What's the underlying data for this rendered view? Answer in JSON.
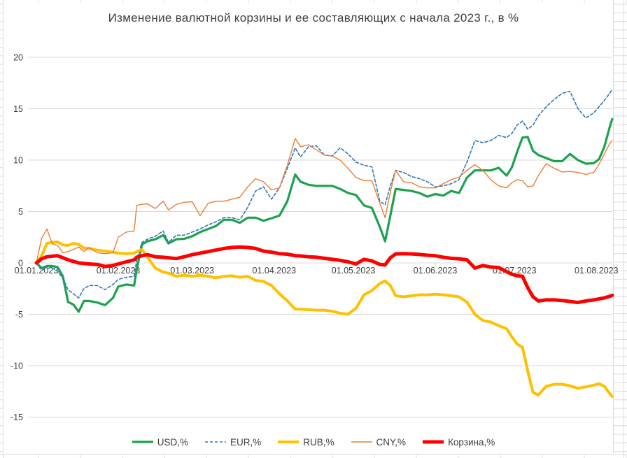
{
  "title": "Изменение валютной корзины и ее составляющих с начала 2023 г., в %",
  "colors": {
    "background": "#ffffff",
    "grid": "#d9d9d9",
    "sheet_line": "#dcdcdc",
    "axis_text": "#404040"
  },
  "chart_data": {
    "type": "line",
    "title": "Изменение валютной корзины и ее составляющих с начала 2023 г., в %",
    "xlabel": "",
    "ylabel": "",
    "grid": true,
    "legend_position": "bottom",
    "x_axis": {
      "labels": [
        "01.01.2023",
        "01.02.2023",
        "01.03.2023",
        "01.04.2023",
        "01.05.2023",
        "01.06.2023",
        "01.07.2023",
        "01.08.2023"
      ],
      "label_days": [
        0,
        31,
        59,
        90,
        120,
        151,
        181,
        212
      ]
    },
    "y_axis": {
      "ticks": [
        20,
        15,
        10,
        5,
        0,
        -5,
        -10,
        -15
      ],
      "ylim": [
        -15,
        20
      ]
    },
    "days": [
      0,
      2,
      4,
      6,
      8,
      10,
      12,
      14,
      16,
      18,
      20,
      23,
      26,
      29,
      31,
      34,
      37,
      38,
      40,
      42,
      45,
      48,
      50,
      53,
      56,
      59,
      62,
      65,
      68,
      71,
      74,
      77,
      80,
      83,
      86,
      89,
      92,
      95,
      98,
      100,
      103,
      106,
      109,
      112,
      115,
      118,
      121,
      124,
      127,
      130,
      132,
      134,
      136,
      139,
      142,
      145,
      148,
      151,
      154,
      157,
      160,
      163,
      166,
      169,
      172,
      175,
      178,
      180,
      182,
      184,
      186,
      188,
      190,
      193,
      196,
      199,
      202,
      205,
      208,
      211,
      213,
      215,
      217,
      218
    ],
    "series": [
      {
        "id": "usd",
        "name": "USD,%",
        "color": "#1CA24F",
        "width": 3.2,
        "dash": null,
        "values": [
          0,
          -0.5,
          -0.3,
          -0.3,
          -0.4,
          -1.3,
          -3.8,
          -4.05,
          -4.75,
          -3.7,
          -3.7,
          -3.85,
          -4.1,
          -3.4,
          -2.3,
          -2.1,
          -2.2,
          -0.6,
          1.8,
          2.1,
          2.3,
          2.7,
          1.9,
          2.3,
          2.35,
          2.6,
          3.0,
          3.3,
          3.6,
          4.2,
          4.2,
          3.9,
          4.4,
          4.4,
          4.1,
          4.35,
          4.6,
          6.0,
          8.6,
          7.9,
          7.6,
          7.5,
          7.5,
          7.5,
          7.2,
          6.8,
          6.6,
          5.6,
          5.35,
          3.5,
          2.1,
          4.6,
          7.2,
          7.1,
          7.0,
          6.8,
          6.45,
          6.7,
          6.55,
          7.0,
          6.8,
          8.3,
          9.0,
          9.0,
          9.0,
          9.25,
          8.5,
          9.3,
          10.8,
          12.2,
          12.25,
          10.9,
          10.5,
          10.2,
          9.9,
          9.9,
          10.6,
          10.0,
          9.65,
          9.7,
          10.1,
          11.3,
          13.2,
          14.0
        ]
      },
      {
        "id": "eur",
        "name": "EUR,%",
        "color": "#2E75B6",
        "width": 1.6,
        "dash": "4 3",
        "values": [
          0,
          -0.7,
          -0.5,
          -0.5,
          -0.8,
          -1.5,
          -2.6,
          -3.0,
          -3.4,
          -2.5,
          -2.2,
          -2.2,
          -2.6,
          -2.1,
          -1.6,
          -1.4,
          -1.3,
          0.3,
          2.0,
          2.3,
          2.6,
          3.1,
          2.0,
          2.7,
          2.7,
          3.0,
          3.3,
          3.7,
          4.0,
          4.4,
          4.4,
          4.2,
          5.4,
          7.0,
          7.4,
          6.2,
          7.3,
          9.2,
          11.2,
          10.3,
          11.3,
          11.4,
          10.5,
          10.4,
          11.2,
          10.6,
          9.8,
          9.5,
          9.35,
          6.0,
          5.65,
          7.5,
          9.0,
          8.8,
          8.4,
          8.2,
          7.9,
          7.4,
          7.5,
          7.7,
          8.1,
          9.8,
          11.9,
          11.7,
          11.9,
          12.4,
          12.2,
          12.6,
          13.4,
          13.8,
          13.0,
          13.4,
          14.3,
          15.2,
          15.9,
          16.5,
          16.7,
          15.0,
          14.1,
          14.6,
          15.2,
          15.8,
          16.5,
          16.9
        ]
      },
      {
        "id": "rub",
        "name": "RUB,%",
        "color": "#FFC000",
        "width": 4,
        "dash": null,
        "values": [
          0,
          0.7,
          1.9,
          2.0,
          2.05,
          1.75,
          1.7,
          1.9,
          1.8,
          1.45,
          1.4,
          1.25,
          1.15,
          1.05,
          0.95,
          0.9,
          0.95,
          1.1,
          1.3,
          0.6,
          -0.5,
          -0.9,
          -1.0,
          -1.3,
          -1.2,
          -1.3,
          -1.2,
          -1.3,
          -1.45,
          -1.3,
          -1.25,
          -1.4,
          -1.3,
          -1.7,
          -1.8,
          -2.2,
          -3.0,
          -3.7,
          -4.5,
          -4.5,
          -4.55,
          -4.6,
          -4.6,
          -4.7,
          -4.9,
          -5.0,
          -4.4,
          -3.1,
          -2.7,
          -2.0,
          -1.75,
          -2.2,
          -3.2,
          -3.3,
          -3.2,
          -3.1,
          -3.1,
          -3.05,
          -3.1,
          -3.2,
          -3.3,
          -3.8,
          -5.0,
          -5.6,
          -5.75,
          -6.1,
          -6.4,
          -7.2,
          -7.9,
          -8.2,
          -10.5,
          -12.6,
          -12.85,
          -12.0,
          -11.8,
          -11.8,
          -11.95,
          -12.2,
          -12.05,
          -11.9,
          -11.75,
          -12.0,
          -12.7,
          -13.0
        ]
      },
      {
        "id": "cny",
        "name": "CNY,%",
        "color": "#ED7D31",
        "width": 1.4,
        "dash": null,
        "values": [
          0,
          2.4,
          3.3,
          1.85,
          1.7,
          1.0,
          1.1,
          1.3,
          1.55,
          1.1,
          1.5,
          1.0,
          0.9,
          1.0,
          2.5,
          3.0,
          3.1,
          5.6,
          5.7,
          5.75,
          5.3,
          6.0,
          5.15,
          5.7,
          5.9,
          5.95,
          4.6,
          5.8,
          6.0,
          6.0,
          6.2,
          6.4,
          7.4,
          8.2,
          7.9,
          7.1,
          7.3,
          9.5,
          12.1,
          11.3,
          11.5,
          11.0,
          10.5,
          10.4,
          10.0,
          9.2,
          8.3,
          8.0,
          8.0,
          5.8,
          4.4,
          6.9,
          9.0,
          7.9,
          7.8,
          7.4,
          7.3,
          7.3,
          7.7,
          8.1,
          8.35,
          9.0,
          9.55,
          9.0,
          8.1,
          7.5,
          7.3,
          7.8,
          8.1,
          8.0,
          7.4,
          7.5,
          8.5,
          9.65,
          9.2,
          8.85,
          8.9,
          8.8,
          8.6,
          8.8,
          9.6,
          10.6,
          11.6,
          11.9
        ]
      },
      {
        "id": "korzina",
        "name": "Корзина,%",
        "color": "#FE0000",
        "width": 5,
        "dash": null,
        "values": [
          0,
          0.4,
          0.6,
          0.65,
          0.7,
          0.5,
          0.3,
          0.15,
          0.0,
          -0.05,
          -0.1,
          -0.15,
          -0.35,
          -0.25,
          -0.1,
          0.1,
          0.3,
          0.55,
          0.7,
          0.8,
          0.6,
          0.55,
          0.5,
          0.42,
          0.6,
          0.8,
          0.95,
          1.1,
          1.25,
          1.4,
          1.5,
          1.55,
          1.5,
          1.4,
          1.15,
          1.05,
          0.9,
          0.85,
          0.7,
          0.68,
          0.6,
          0.55,
          0.45,
          0.35,
          0.25,
          0.1,
          -0.1,
          0.35,
          0.2,
          -0.15,
          -0.2,
          0.5,
          0.88,
          0.9,
          0.88,
          0.82,
          0.75,
          0.7,
          0.55,
          0.45,
          0.4,
          0.3,
          -0.5,
          -0.25,
          -0.4,
          -0.45,
          -0.85,
          -1.1,
          -1.25,
          -1.3,
          -2.4,
          -3.3,
          -3.7,
          -3.6,
          -3.6,
          -3.65,
          -3.75,
          -3.85,
          -3.7,
          -3.6,
          -3.5,
          -3.4,
          -3.25,
          -3.15
        ]
      }
    ]
  }
}
